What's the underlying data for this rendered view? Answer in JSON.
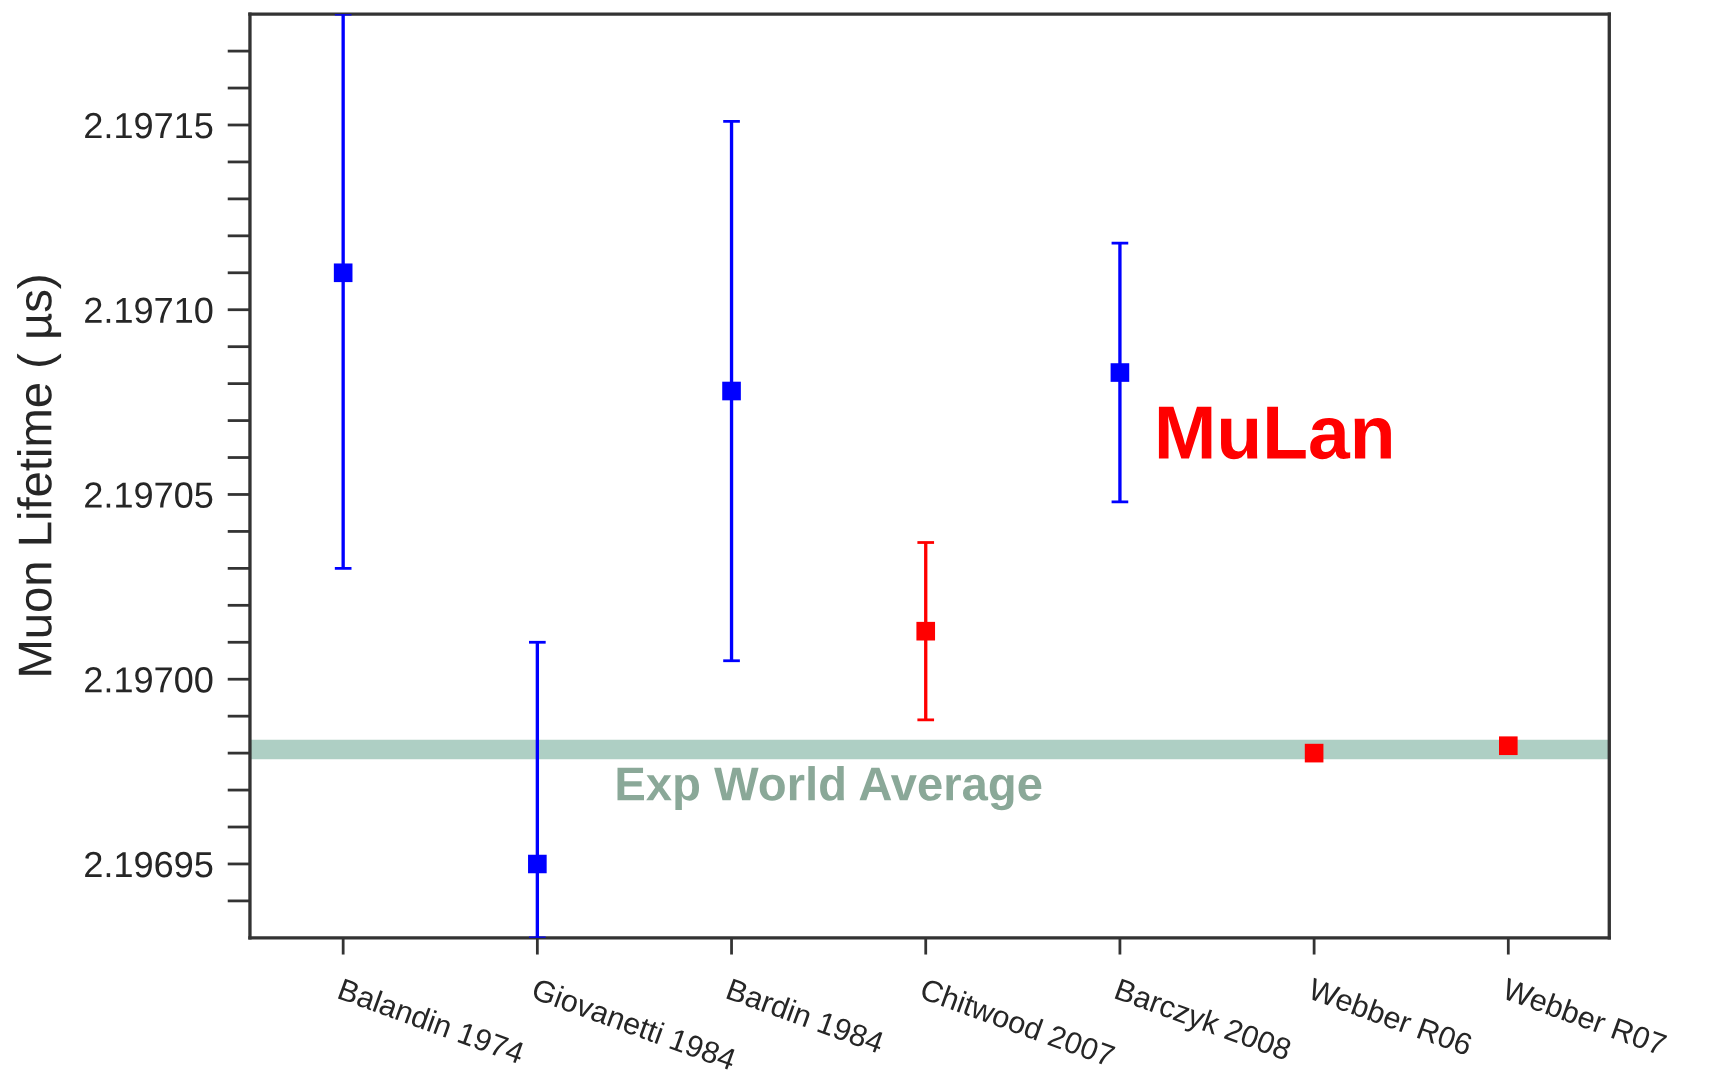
{
  "chart_data": {
    "type": "scatter",
    "categories": [
      "Balandin 1974",
      "Giovanetti 1984",
      "Bardin 1984",
      "Chitwood 2007",
      "Barczyk 2008",
      "Webber R06",
      "Webber R07"
    ],
    "values": [
      2.19711,
      2.19695,
      2.197078,
      2.197013,
      2.197083,
      2.19698,
      2.196982
    ],
    "errors": [
      [
        2.19703,
        2.19718
      ],
      [
        2.19693,
        2.19701
      ],
      7.3e-05,
      2.4e-05,
      3.5e-05,
      2e-06,
      2e-06
    ],
    "colors": [
      "#0000ff",
      "#0000ff",
      "#0000ff",
      "#ff0000",
      "#0000ff",
      "#ff0000",
      "#ff0000"
    ],
    "marker": "square",
    "ylabel": "Muon Lifetime ( µs)",
    "ylim": [
      2.19693,
      2.19718
    ],
    "yticks": [
      {
        "value": 2.19694,
        "label": null
      },
      {
        "value": 2.19695,
        "label": "2.19695"
      },
      {
        "value": 2.19696,
        "label": null
      },
      {
        "value": 2.19697,
        "label": null
      },
      {
        "value": 2.19698,
        "label": null
      },
      {
        "value": 2.19699,
        "label": null
      },
      {
        "value": 2.197,
        "label": "2.19700"
      },
      {
        "value": 2.19701,
        "label": null
      },
      {
        "value": 2.19702,
        "label": null
      },
      {
        "value": 2.19703,
        "label": null
      },
      {
        "value": 2.19704,
        "label": null
      },
      {
        "value": 2.19705,
        "label": "2.19705"
      },
      {
        "value": 2.19706,
        "label": null
      },
      {
        "value": 2.19707,
        "label": null
      },
      {
        "value": 2.19708,
        "label": null
      },
      {
        "value": 2.19709,
        "label": null
      },
      {
        "value": 2.1971,
        "label": "2.19710"
      },
      {
        "value": 2.19711,
        "label": null
      },
      {
        "value": 2.19712,
        "label": null
      },
      {
        "value": 2.19713,
        "label": null
      },
      {
        "value": 2.19714,
        "label": null
      },
      {
        "value": 2.19715,
        "label": "2.19715"
      },
      {
        "value": 2.19716,
        "label": null
      },
      {
        "value": 2.19717,
        "label": null
      }
    ],
    "ref_lines": [
      {
        "axis": "y",
        "value": 2.196981,
        "label": "Exp World Average",
        "color": "#aecfc4"
      }
    ],
    "annotations": [
      "MuLan"
    ],
    "grid": false
  }
}
